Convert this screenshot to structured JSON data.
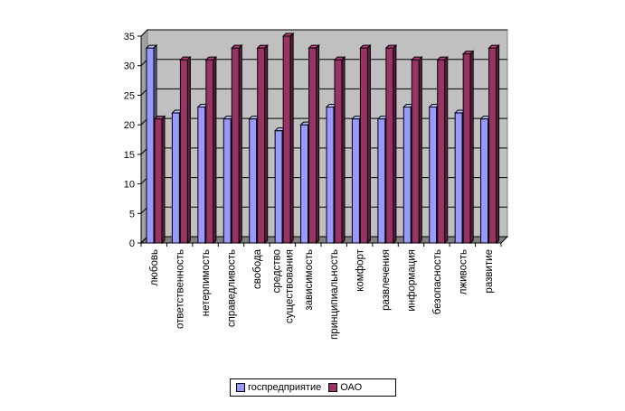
{
  "chart_data": {
    "type": "bar",
    "categories": [
      "любовь",
      "ответственность",
      "нетерпимость",
      "справедливость",
      "свобода",
      "средство существования",
      "зависимость",
      "принципиальность",
      "комфорт",
      "развлечения",
      "информация",
      "безопасность",
      "лживость",
      "развитие"
    ],
    "category_lines": [
      [
        "любовь"
      ],
      [
        "ответственность"
      ],
      [
        "нетерпимость"
      ],
      [
        "справедливость"
      ],
      [
        "свобода"
      ],
      [
        "средство",
        "существования"
      ],
      [
        "зависимость"
      ],
      [
        "принципиальность"
      ],
      [
        "комфорт"
      ],
      [
        "развлечения"
      ],
      [
        "информация"
      ],
      [
        "безопасность"
      ],
      [
        "лживость"
      ],
      [
        "развитие"
      ]
    ],
    "series": [
      {
        "name": "госпредприятие",
        "color": "#9999ff",
        "values": [
          33,
          22,
          23,
          21,
          21,
          19,
          20,
          23,
          21,
          21,
          23,
          23,
          22,
          21
        ]
      },
      {
        "name": "ОАО",
        "color": "#993366",
        "values": [
          21,
          31,
          31,
          33,
          33,
          35,
          33,
          31,
          33,
          33,
          31,
          31,
          32,
          33
        ]
      }
    ],
    "ylim": [
      0,
      35
    ],
    "yticks": [
      "0",
      "5",
      "10",
      "15",
      "20",
      "25",
      "30",
      "35"
    ],
    "grid": true,
    "legend": "bottom",
    "plot_background": "#c0c0c0",
    "three_d": true
  }
}
